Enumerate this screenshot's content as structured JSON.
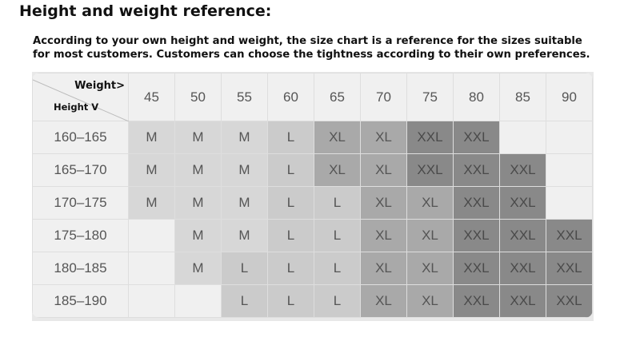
{
  "title": "Height and weight reference:",
  "description": "According to your own height and weight, the size chart is a reference for the sizes suitable for most customers. Customers can choose the tightness according to their own preferences.",
  "table": {
    "corner_weight": "Weight>",
    "corner_height": "Height V",
    "weights": [
      "45",
      "50",
      "55",
      "60",
      "65",
      "70",
      "75",
      "80",
      "85",
      "90"
    ],
    "rows": [
      {
        "height": "160–165",
        "sizes": [
          "M",
          "M",
          "M",
          "L",
          "XL",
          "XL",
          "XXL",
          "XXL",
          "",
          ""
        ]
      },
      {
        "height": "165–170",
        "sizes": [
          "M",
          "M",
          "M",
          "L",
          "XL",
          "XL",
          "XXL",
          "XXL",
          "XXL",
          ""
        ]
      },
      {
        "height": "170–175",
        "sizes": [
          "M",
          "M",
          "M",
          "L",
          "L",
          "XL",
          "XL",
          "XXL",
          "XXL",
          ""
        ]
      },
      {
        "height": "175–180",
        "sizes": [
          "",
          "M",
          "M",
          "L",
          "L",
          "XL",
          "XL",
          "XXL",
          "XXL",
          "XXL"
        ]
      },
      {
        "height": "180–185",
        "sizes": [
          "",
          "M",
          "L",
          "L",
          "L",
          "XL",
          "XL",
          "XXL",
          "XXL",
          "XXL"
        ]
      },
      {
        "height": "185–190",
        "sizes": [
          "",
          "",
          "L",
          "L",
          "L",
          "XL",
          "XL",
          "XXL",
          "XXL",
          "XXL"
        ]
      }
    ]
  },
  "colors": {
    "M": "#d7d7d7",
    "L": "#cbcbcb",
    "XL": "#a9a9a9",
    "XXL": "#898989",
    "empty": "#f0f0f0"
  }
}
